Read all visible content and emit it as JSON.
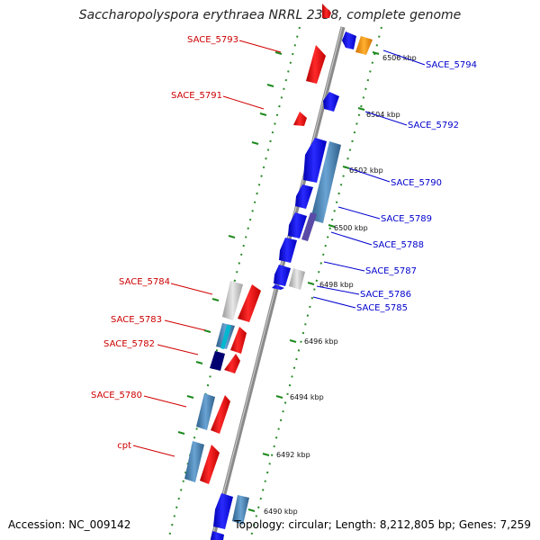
{
  "title": "Saccharopolyspora erythraea NRRL 2338, complete genome",
  "footer": {
    "accession": "Accession: NC_009142",
    "summary": "Topology: circular; Length: 8,212,805 bp; Genes: 7,259"
  },
  "scale_labels": [
    "6506 kbp",
    "6504 kbp",
    "6502 kbp",
    "6500 kbp",
    "6498 kbp",
    "6496 kbp",
    "6494 kbp",
    "6492 kbp",
    "6490 kbp"
  ],
  "left_genes": [
    "SACE_5793",
    "SACE_5791",
    "SACE_5784",
    "SACE_5783",
    "SACE_5782",
    "SACE_5780",
    "cpt"
  ],
  "right_genes": [
    "SACE_5794",
    "SACE_5792",
    "SACE_5790",
    "SACE_5789",
    "SACE_5788",
    "SACE_5787",
    "SACE_5786",
    "SACE_5785"
  ],
  "colors": {
    "forward_strand": "#ff0000",
    "reverse_strand": "#0000ff",
    "left_label": "#cc0000",
    "right_label": "#0000cc",
    "backbone": "#808080",
    "dots": "#228b22",
    "orange": "#ff9900",
    "cyan": "#00b0c8",
    "steel": "#4682b4",
    "navy": "#000080",
    "grey": "#c0c0c0"
  }
}
